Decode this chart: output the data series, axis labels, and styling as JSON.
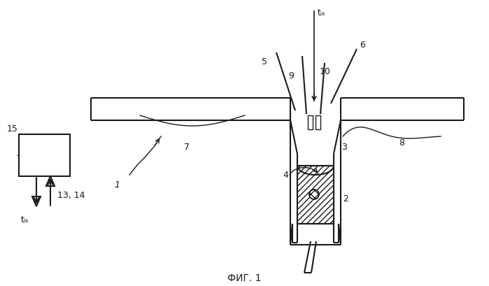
{
  "background_color": "#ffffff",
  "line_color": "#1a1a1a",
  "fig_width": 6.99,
  "fig_height": 4.09,
  "dpi": 100,
  "labels": {
    "tik_top": "tᵢₖ",
    "fig_label": "ФИГ. 1",
    "num_1": "1",
    "num_2": "2",
    "num_3": "3",
    "num_4": "4",
    "num_5": "5",
    "num_6": "6",
    "num_7": "7",
    "num_8": "8",
    "num_9": "9",
    "num_10": "10",
    "num_13_14": "13, 14",
    "num_15": "15",
    "tik_bottom": "tᵢₖ"
  }
}
